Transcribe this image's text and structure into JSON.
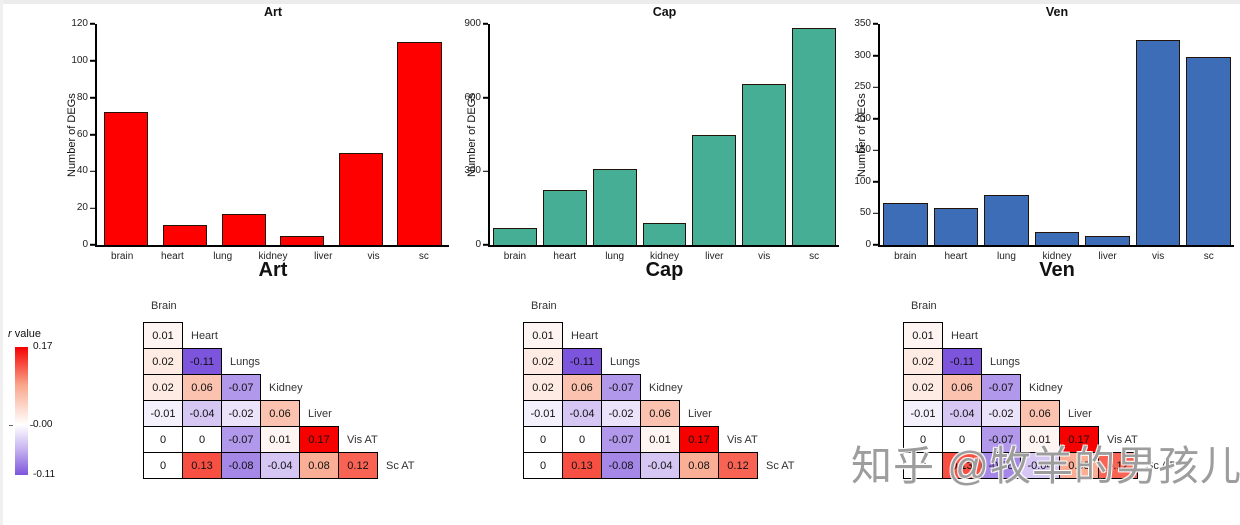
{
  "chart_data": [
    {
      "type": "bar",
      "title": "Art",
      "xlabel": "Art",
      "ylabel": "Number of DEGs",
      "categories": [
        "brain",
        "heart",
        "lung",
        "kidney",
        "liver",
        "vis",
        "sc"
      ],
      "values": [
        0,
        72,
        11,
        17,
        5,
        50,
        110
      ],
      "ylim": [
        0,
        120
      ],
      "yticks": [
        0,
        20,
        40,
        60,
        80,
        100,
        120
      ],
      "grid": false,
      "bar_color": "#FF0000",
      "bar_border": "#241407"
    },
    {
      "type": "bar",
      "title": "Cap",
      "xlabel": "Cap",
      "ylabel": "Number of DEGs",
      "categories": [
        "brain",
        "heart",
        "lung",
        "kidney",
        "liver",
        "vis",
        "sc"
      ],
      "values": [
        70,
        225,
        310,
        90,
        450,
        655,
        885
      ],
      "ylim": [
        0,
        900
      ],
      "yticks": [
        0,
        300,
        600,
        900
      ],
      "grid": false,
      "bar_color": "#46AE94",
      "bar_border": "#241407"
    },
    {
      "type": "bar",
      "title": "Ven",
      "xlabel": "Ven",
      "ylabel": "Number of DEGs",
      "categories": [
        "brain",
        "heart",
        "lung",
        "kidney",
        "liver",
        "vis",
        "sc"
      ],
      "values": [
        67,
        58,
        80,
        20,
        15,
        325,
        297
      ],
      "ylim": [
        0,
        350
      ],
      "yticks": [
        0,
        50,
        100,
        150,
        200,
        250,
        300,
        350
      ],
      "grid": false,
      "bar_color": "#3E6DB8",
      "bar_border": "#241407"
    },
    {
      "type": "heatmap",
      "instances": 3,
      "description": "lower-triangle correlation matrix, identical under each of Art, Cap, Ven",
      "labels": [
        "Brain",
        "Heart",
        "Lungs",
        "Kidney",
        "Liver",
        "Vis AT",
        "Sc AT"
      ],
      "rows": [
        [
          0.01
        ],
        [
          0.02,
          -0.11
        ],
        [
          0.02,
          0.06,
          -0.07
        ],
        [
          -0.01,
          -0.04,
          -0.02,
          0.06
        ],
        [
          0,
          0,
          -0.07,
          0.01,
          0.17
        ],
        [
          0,
          0.13,
          -0.08,
          -0.04,
          0.08,
          0.12
        ]
      ],
      "color_scale": {
        "min": -0.11,
        "mid": 0,
        "max": 0.17,
        "min_color": "#7D55DC",
        "neg_mid_color": "#C5B1F0",
        "mid_color": "#FFFFFF",
        "pos_mid_color": "#F9A98E",
        "max_color": "#F60000"
      }
    }
  ],
  "legend": {
    "title_symbol": "r",
    "title_text": "value",
    "ticks": [
      {
        "value": 0.17,
        "label": "0.17"
      },
      {
        "value": 0,
        "label": "0.00"
      },
      {
        "value": -0.11,
        "label": "-0.11"
      }
    ]
  },
  "watermark": {
    "text": "知乎 @牧羊的男孩儿",
    "color": "#9d9d9d"
  }
}
